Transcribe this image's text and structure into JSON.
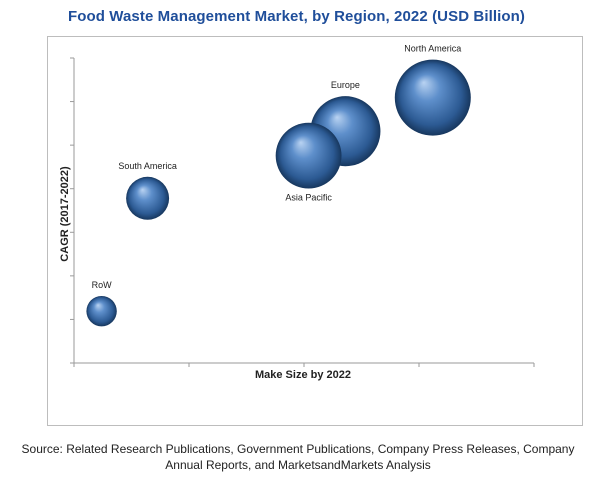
{
  "chart_data": {
    "type": "bubble",
    "title": "Food Waste Management Market, by Region, 2022 (USD Billion)",
    "xlabel": "Make Size by 2022",
    "ylabel": "CAGR (2017-2022)",
    "xlim": [
      0,
      100
    ],
    "ylim": [
      0,
      100
    ],
    "grid": false,
    "legend": "none",
    "tick_labels_shown": false,
    "points": [
      {
        "label": "North America",
        "x": 78,
        "y": 87,
        "size": 10
      },
      {
        "label": "Europe",
        "x": 59,
        "y": 76,
        "size": 8.5
      },
      {
        "label": "Asia Pacific",
        "x": 51,
        "y": 68,
        "size": 7.5
      },
      {
        "label": "South America",
        "x": 16,
        "y": 54,
        "size": 3.2
      },
      {
        "label": "RoW",
        "x": 6,
        "y": 17,
        "size": 1.6
      }
    ]
  },
  "source": {
    "line1": "Source: Related Research Publications, Government Publications, Company Press Releases, Company",
    "line2": "Annual Reports, and MarketsandMarkets Analysis"
  },
  "colors": {
    "title": "#1f4e9a",
    "bubble_light": "#a9c6ec",
    "bubble_mid": "#4f81bd",
    "bubble_dark": "#17375e",
    "axis": "#9a9a9a"
  }
}
